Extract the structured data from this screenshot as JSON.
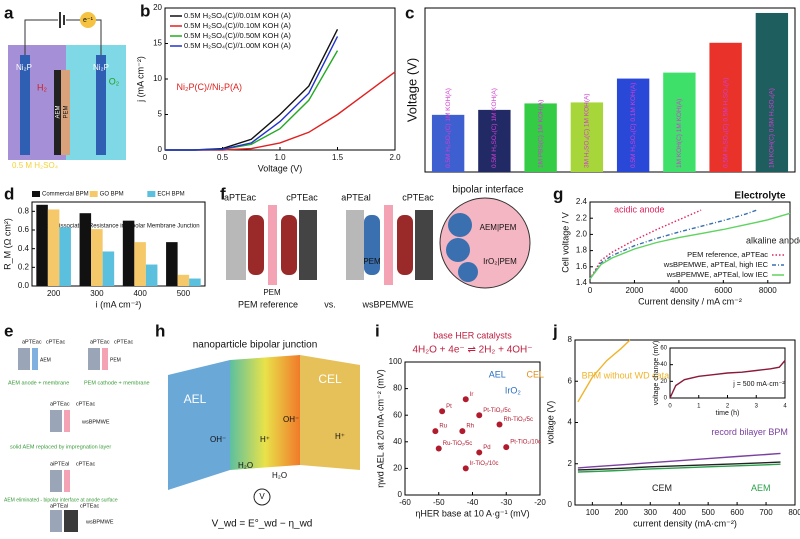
{
  "panel_labels": [
    "a",
    "b",
    "c",
    "d",
    "e",
    "f",
    "g",
    "h",
    "i",
    "j"
  ],
  "diagram_a": {
    "electrode_left": "Ni₂P",
    "electrode_right": "Ni₂P",
    "gas_left": "H₂",
    "gas_right": "O₂",
    "electron": "e⁻¹",
    "membrane_1": "AEM",
    "membrane_2": "PEM",
    "electrolyte_left": "0.5 M H₂SO₄",
    "electrolyte_right": "1 M KOH"
  },
  "diagram_e": {
    "labels": [
      "aPTEac",
      "cPTEac",
      "AEM",
      "aPTEac",
      "cPTEac",
      "PEM",
      "AEM anode + membrane",
      "PEM cathode + membrane",
      "aPTEac",
      "cPTEac",
      "wsBPMWE",
      "solid AEM replaced by impregnation layer",
      "aiPTEal",
      "cPTEac",
      "AEM eliminated - bipolar interface at anode surface",
      "aPTEal",
      "cPTEac",
      "wsBPMWE"
    ]
  },
  "diagram_f": {
    "labels": [
      "aPTEac",
      "cPTEac",
      "PEM",
      "aPTEal",
      "cPTEac",
      "PEM",
      "PEM reference",
      "vs.",
      "wsBPEMWE",
      "bipolar interface",
      "AEM|PEM",
      "IrO₂|PEM"
    ]
  },
  "diagram_h": {
    "title": "nanoparticle bipolar junction",
    "left_layer": "AEL",
    "right_layer": "CEL",
    "ions": [
      "OH⁻",
      "OH⁻",
      "H⁺",
      "H⁺",
      "H₂O",
      "H₂O"
    ],
    "meter": "V",
    "equation": "V_wd = E°_wd − η_wd"
  },
  "chart_data": [
    {
      "type": "line",
      "xlabel": "Voltage (V)",
      "ylabel": "j (mA cm⁻²)",
      "x": [
        0,
        0.25,
        0.5,
        0.75,
        1.0,
        1.25,
        1.5,
        1.75,
        2.0
      ],
      "xlim": [
        0,
        2
      ],
      "xticks": [
        0,
        0.5,
        {
          "value": 1,
          "label": "1.0"
        },
        1.5,
        {
          "value": 2,
          "label": "2.0"
        }
      ],
      "ylim": [
        0,
        20
      ],
      "yticks": [
        0,
        5,
        10,
        15,
        20
      ],
      "legend": "upper left",
      "series": [
        {
          "name": "0.5M H₂SO₄(C)//0.01M KOH (A)",
          "color": "#111111",
          "values": [
            0,
            0,
            0.2,
            1.5,
            5,
            9,
            17,
            null,
            null
          ]
        },
        {
          "name": "0.5M H₂SO₄(C)//0.10M KOH (A)",
          "color": "#e02020",
          "values": [
            0,
            0,
            0,
            0.2,
            1,
            2.5,
            5,
            8,
            11
          ]
        },
        {
          "name": "0.5M H₂SO₄(C)//0.50M KOH (A)",
          "color": "#22aa22",
          "values": [
            0,
            0,
            0.1,
            0.8,
            3,
            7,
            14,
            null,
            null
          ]
        },
        {
          "name": "0.5M H₂SO₄(C)//1.00M KOH (A)",
          "color": "#2233cc",
          "values": [
            0,
            0,
            0.1,
            1,
            4,
            8,
            16,
            null,
            null
          ]
        }
      ],
      "annotations": [
        "Ni₂P(C)//Ni₂P(A)"
      ],
      "annotation_colors": [
        "#e02020"
      ]
    },
    {
      "type": "bar",
      "ylabel": "Voltage (V)",
      "ylim": [
        0,
        3.3
      ],
      "categories": [
        "0.5M H₂SO₄(C) 1M KOH(A)",
        "0.5M H₂SO₄(C) 1M KOH(A)",
        "1M PBS(C) 1M KOH(A)",
        "3M H₂SO₄(C) 1M KOH(A)",
        "0.5M H₂SO₄(C) 0.1M KOH(A)",
        "1M KOH(C) 1M KOH(A)",
        "0.5M H₂SO₄(C) 0.5M H₂SO₄(A)",
        "1M KOH(C) 0.5M H₂SO₄(A)"
      ],
      "values": [
        1.15,
        1.25,
        1.38,
        1.4,
        1.88,
        2.0,
        2.6,
        3.2
      ],
      "colors": [
        "#3d5fd0",
        "#222a66",
        "#33cc44",
        "#a6d63a",
        "#2a48d8",
        "#3ee06a",
        "#e8322a",
        "#1f5e5e"
      ],
      "label_color": "#d040d0"
    },
    {
      "type": "grouped_bar",
      "title": "Water Dissociation Resistance in Bipolar Membrane Junction",
      "xlabel": "i (mA cm⁻²)",
      "ylabel": "R_M (Ω cm²)",
      "categories": [
        "200",
        "300",
        "400",
        "500"
      ],
      "ylim": [
        0,
        0.9
      ],
      "yticks": [
        {
          "value": 0,
          "label": "0.0"
        },
        0.2,
        0.4,
        0.6,
        0.8
      ],
      "legend": "top",
      "series": [
        {
          "name": "Commercial BPM",
          "color": "#111111",
          "values": [
            0.87,
            0.78,
            0.7,
            0.47
          ]
        },
        {
          "name": "GO BPM",
          "color": "#f5c96a",
          "values": [
            0.82,
            0.61,
            0.47,
            0.12
          ]
        },
        {
          "name": "ECH BPM",
          "color": "#5bc0de",
          "values": [
            0.63,
            0.37,
            0.23,
            0.08
          ]
        }
      ]
    },
    {
      "type": "line",
      "title": "Electrolyte",
      "xlabel": "Current density / mA cm⁻²",
      "ylabel": "Cell voltage / V",
      "x": [
        0,
        500,
        1000,
        2000,
        3000,
        4000,
        5000,
        6000,
        7000,
        7500,
        8000,
        9000
      ],
      "xlim": [
        0,
        9000
      ],
      "xticks": [
        0,
        2000,
        4000,
        6000,
        8000
      ],
      "ylim": [
        1.4,
        2.4
      ],
      "yticks": [
        1.4,
        1.6,
        1.8,
        {
          "value": 2,
          "label": "2.0"
        },
        2.2,
        2.4
      ],
      "legend": "lower right",
      "series": [
        {
          "name": "PEM reference, aPTEac",
          "color": "#e0245e",
          "style": "dotted",
          "values": [
            1.45,
            1.68,
            1.78,
            1.93,
            2.06,
            2.18,
            2.3,
            null,
            null,
            null,
            null,
            null
          ]
        },
        {
          "name": "wsBPEMWE, aPTEal, high IEC",
          "color": "#3a6fb0",
          "style": "dashdot",
          "values": [
            1.45,
            1.65,
            1.74,
            1.86,
            1.95,
            2.03,
            2.1,
            2.17,
            2.25,
            2.3,
            null,
            null
          ]
        },
        {
          "name": "wsBPEMWE, aPTEal, low IEC",
          "color": "#5fd35f",
          "values": [
            1.45,
            1.63,
            1.71,
            1.82,
            1.9,
            1.96,
            2.01,
            2.06,
            2.12,
            2.15,
            2.18,
            2.26
          ]
        }
      ],
      "annotations": [
        "acidic anode",
        "alkaline anode"
      ],
      "annotation_colors": [
        "#e0245e",
        "#222222"
      ]
    },
    {
      "type": "scatter",
      "title": "base HER catalysts",
      "subtitle": "4H₂O + 4e⁻ ⇌ 2H₂ + 4OH⁻",
      "xlabel": "ηHER base at 10 A·g⁻¹ (mV)",
      "ylabel": "ηwd AEL at 20 mA·cm⁻² (mV)",
      "xlim": [
        -60,
        -20
      ],
      "xticks": [
        -60,
        -50,
        -40,
        -30,
        -20
      ],
      "ylim": [
        0,
        100
      ],
      "yticks": [
        0,
        20,
        40,
        60,
        80,
        100
      ],
      "color": "#b01c2e",
      "labels": [
        "Ir",
        "Pt",
        "Ru",
        "Rh",
        "Pd",
        "Pt-TiO₂/5c",
        "Rh-TiO₂/5c",
        "Ru-TiO₂/5c",
        "Pt-TiO₂/10c",
        "Ir-TiO₂/10c"
      ],
      "x": [
        -42,
        -49,
        -51,
        -43,
        -38,
        -38,
        -32,
        -50,
        -30,
        -42
      ],
      "values": [
        72,
        63,
        48,
        48,
        32,
        60,
        53,
        35,
        36,
        20
      ],
      "annotations": [
        "AEL",
        "IrO₂",
        "CEL"
      ],
      "annotation_colors": [
        "#2a6fc0",
        "#2a6fc0",
        "#e0901a"
      ]
    },
    {
      "type": "line",
      "xlabel": "current density (mA·cm⁻²)",
      "ylabel": "voltage (V)",
      "x": [
        50,
        100,
        150,
        200,
        230,
        300,
        400,
        500,
        600,
        700,
        750
      ],
      "xlim": [
        40,
        800
      ],
      "xticks": [
        100,
        200,
        300,
        400,
        500,
        600,
        700,
        800
      ],
      "ylim": [
        0,
        8
      ],
      "yticks": [
        0,
        2,
        4,
        6,
        8
      ],
      "legend": "inline",
      "series": [
        {
          "name": "BPM without WD catalyst",
          "color": "#f0b429",
          "values": [
            5,
            6.2,
            7,
            7.6,
            8,
            null,
            null,
            null,
            null,
            null,
            null
          ]
        },
        {
          "name": "record bilayer BPM",
          "color": "#7b3fa0",
          "values": [
            1.8,
            1.85,
            1.9,
            1.95,
            1.98,
            2.05,
            2.15,
            2.25,
            2.35,
            2.45,
            2.5
          ]
        },
        {
          "name": "CEM",
          "color": "#222222",
          "values": [
            1.7,
            1.72,
            1.75,
            1.78,
            1.8,
            1.85,
            1.9,
            1.95,
            2.0,
            2.05,
            2.08
          ]
        },
        {
          "name": "AEM",
          "color": "#2aa04a",
          "values": [
            1.6,
            1.62,
            1.65,
            1.68,
            1.7,
            1.75,
            1.8,
            1.85,
            1.9,
            1.95,
            1.98
          ]
        }
      ]
    },
    {
      "type": "line",
      "xlabel": "time (h)",
      "ylabel": "voltage change (mV)",
      "x": [
        0,
        0.2,
        0.5,
        1,
        1.5,
        2,
        2.5,
        3,
        3.5,
        3.8,
        4
      ],
      "xlim": [
        0,
        4
      ],
      "xticks": [
        0,
        1,
        2,
        3,
        4
      ],
      "ylim": [
        0,
        60
      ],
      "yticks": [
        0,
        20,
        40,
        60
      ],
      "series": [
        {
          "color": "#8b1a3a",
          "values": [
            0,
            15,
            22,
            26,
            28,
            30,
            31,
            33,
            35,
            37,
            45
          ]
        }
      ],
      "annotations": [
        "j = 500 mA·cm⁻²"
      ],
      "annotation_colors": [
        "#111111"
      ]
    }
  ]
}
